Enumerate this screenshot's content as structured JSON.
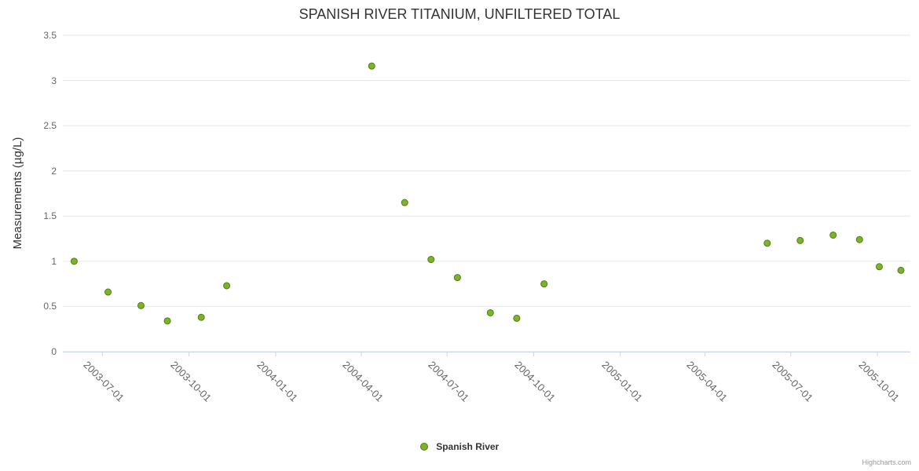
{
  "chart": {
    "title": "SPANISH RIVER TITANIUM, UNFILTERED TOTAL",
    "credits": "Highcharts.com"
  },
  "legend": {
    "items": [
      {
        "label": "Spanish River"
      }
    ]
  },
  "colors": {
    "marker_fill": "#7db32a",
    "marker_stroke": "#4f7d12",
    "grid": "#e6e6e6",
    "axis_line": "#ccd6eb",
    "tick_label": "#666666",
    "title_text": "#333333",
    "credits_text": "#999999",
    "background": "#ffffff"
  },
  "chart_data": {
    "type": "scatter",
    "title": "SPANISH RIVER TITANIUM, UNFILTERED TOTAL",
    "xlabel": "",
    "ylabel": "Measurements (µg/L)",
    "ylim": [
      0,
      3.5
    ],
    "y_ticks": [
      0,
      0.5,
      1,
      1.5,
      2,
      2.5,
      3,
      3.5
    ],
    "x_ticks": [
      "2003-07-01",
      "2003-10-01",
      "2004-01-01",
      "2004-04-01",
      "2004-07-01",
      "2004-10-01",
      "2005-01-01",
      "2005-04-01",
      "2005-07-01",
      "2005-10-01"
    ],
    "x_range": [
      "2003-05-20",
      "2005-11-05"
    ],
    "grid": true,
    "legend_position": "bottom-center",
    "series": [
      {
        "name": "Spanish River",
        "points": [
          {
            "x": "2003-06-01",
            "y": 1.0
          },
          {
            "x": "2003-07-07",
            "y": 0.66
          },
          {
            "x": "2003-08-11",
            "y": 0.51
          },
          {
            "x": "2003-09-08",
            "y": 0.34
          },
          {
            "x": "2003-10-14",
            "y": 0.38
          },
          {
            "x": "2003-11-10",
            "y": 0.73
          },
          {
            "x": "2004-04-12",
            "y": 3.16
          },
          {
            "x": "2004-05-17",
            "y": 1.65
          },
          {
            "x": "2004-06-14",
            "y": 1.02
          },
          {
            "x": "2004-07-12",
            "y": 0.82
          },
          {
            "x": "2004-08-16",
            "y": 0.43
          },
          {
            "x": "2004-09-13",
            "y": 0.37
          },
          {
            "x": "2004-10-12",
            "y": 0.75
          },
          {
            "x": "2005-06-06",
            "y": 1.2
          },
          {
            "x": "2005-07-11",
            "y": 1.23
          },
          {
            "x": "2005-08-15",
            "y": 1.29
          },
          {
            "x": "2005-09-12",
            "y": 1.24
          },
          {
            "x": "2005-10-03",
            "y": 0.94
          },
          {
            "x": "2005-10-26",
            "y": 0.9
          }
        ]
      }
    ]
  }
}
